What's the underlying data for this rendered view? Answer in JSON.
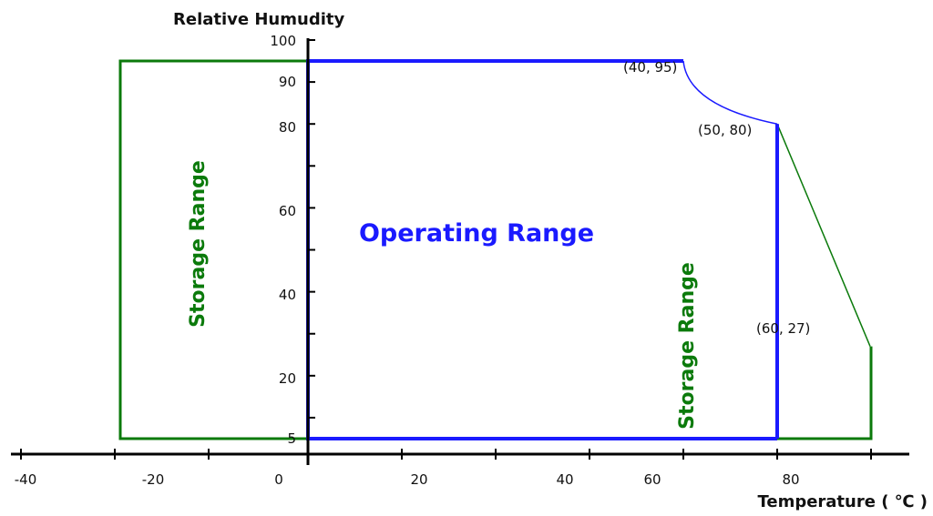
{
  "chart_data": {
    "type": "area",
    "xlabel": "Temperature ( ℃ )",
    "ylabel": "Relative Humudity",
    "x_ticks": [
      "-40",
      "-20",
      "0",
      "20",
      "40",
      "60",
      "80"
    ],
    "y_ticks": [
      "5",
      "20",
      "40",
      "60",
      "80",
      "90",
      "100"
    ],
    "series": [
      {
        "name": "Operating Range",
        "color": "#1a1aff",
        "points": [
          [
            0,
            5
          ],
          [
            0,
            95
          ],
          [
            40,
            95
          ],
          [
            50,
            80
          ],
          [
            50,
            5
          ]
        ]
      },
      {
        "name": "Storage Range",
        "color": "#0b7a0b",
        "points": [
          [
            -20,
            5
          ],
          [
            -20,
            95
          ],
          [
            40,
            95
          ],
          [
            50,
            80
          ],
          [
            60,
            27
          ],
          [
            60,
            5
          ]
        ]
      }
    ],
    "annotations": [
      "(40, 95)",
      "(50, 80)",
      "(60, 27)"
    ],
    "region_labels": [
      "Operating Range",
      "Storage Range",
      "Storage Range"
    ]
  }
}
